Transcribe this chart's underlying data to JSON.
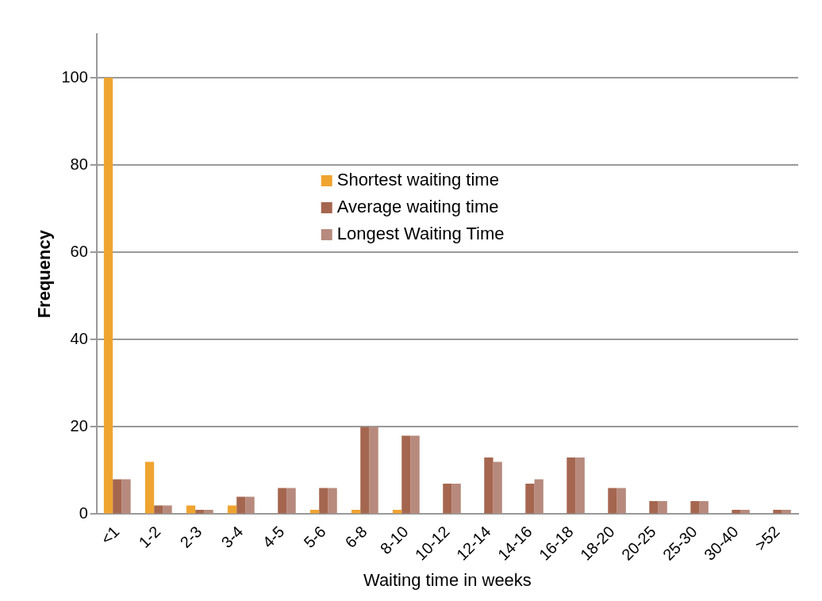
{
  "chart_data": {
    "type": "bar",
    "xlabel": "Waiting time in weeks",
    "ylabel": "Frequency",
    "categories": [
      "<1",
      "1-2",
      "2-3",
      "3-4",
      "4-5",
      "5-6",
      "6-8",
      "8-10",
      "10-12",
      "12-14",
      "14-16",
      "16-18",
      "18-20",
      "20-25",
      "25-30",
      "30-40",
      ">52"
    ],
    "series": [
      {
        "name": "Shortest waiting time",
        "color": "#f0a430",
        "values": [
          100,
          12,
          2,
          2,
          0,
          1,
          1,
          1,
          0,
          0,
          0,
          0,
          0,
          0,
          0,
          0,
          0
        ]
      },
      {
        "name": "Average waiting time",
        "color": "#a5664f",
        "values": [
          8,
          2,
          1,
          4,
          6,
          6,
          20,
          18,
          7,
          13,
          7,
          13,
          6,
          3,
          3,
          1,
          1
        ]
      },
      {
        "name": "Longest Waiting Time",
        "color": "#b78a7d",
        "values": [
          8,
          2,
          1,
          4,
          6,
          6,
          20,
          18,
          7,
          12,
          8,
          13,
          6,
          3,
          3,
          1,
          1
        ]
      }
    ],
    "ylim": [
      0,
      110
    ],
    "yticks": [
      0,
      20,
      40,
      60,
      80,
      100
    ],
    "grid": "y",
    "legend": "top"
  }
}
